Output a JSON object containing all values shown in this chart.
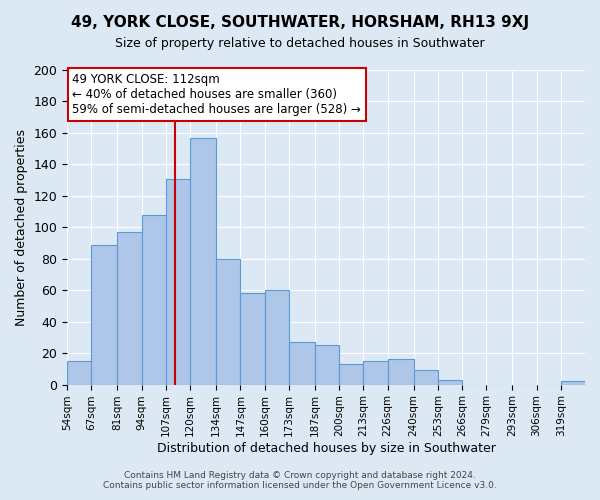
{
  "title": "49, YORK CLOSE, SOUTHWATER, HORSHAM, RH13 9XJ",
  "subtitle": "Size of property relative to detached houses in Southwater",
  "xlabel": "Distribution of detached houses by size in Southwater",
  "ylabel": "Number of detached properties",
  "bin_labels": [
    "54sqm",
    "67sqm",
    "81sqm",
    "94sqm",
    "107sqm",
    "120sqm",
    "134sqm",
    "147sqm",
    "160sqm",
    "173sqm",
    "187sqm",
    "200sqm",
    "213sqm",
    "226sqm",
    "240sqm",
    "253sqm",
    "266sqm",
    "279sqm",
    "293sqm",
    "306sqm",
    "319sqm"
  ],
  "bar_values": [
    15,
    89,
    97,
    108,
    131,
    157,
    80,
    58,
    60,
    27,
    25,
    13,
    15,
    16,
    9,
    3,
    0,
    0,
    0,
    0,
    2
  ],
  "bar_color": "#aec6e8",
  "bar_edge_color": "#5b9bd5",
  "ylim": [
    0,
    200
  ],
  "yticks": [
    0,
    20,
    40,
    60,
    80,
    100,
    120,
    140,
    160,
    180,
    200
  ],
  "marker_value": 112,
  "marker_label": "49 YORK CLOSE: 112sqm",
  "annotation_line1": "← 40% of detached houses are smaller (360)",
  "annotation_line2": "59% of semi-detached houses are larger (528) →",
  "marker_line_color": "#cc0000",
  "annotation_box_color": "#ffffff",
  "annotation_box_edge_color": "#cc0000",
  "footer_line1": "Contains HM Land Registry data © Crown copyright and database right 2024.",
  "footer_line2": "Contains public sector information licensed under the Open Government Licence v3.0.",
  "background_color": "#dce9f5",
  "plot_bg_color": "#dce9f5",
  "grid_color": "#ffffff",
  "bin_edges": [
    54,
    67,
    81,
    94,
    107,
    120,
    134,
    147,
    160,
    173,
    187,
    200,
    213,
    226,
    240,
    253,
    266,
    279,
    293,
    306,
    319,
    332
  ]
}
